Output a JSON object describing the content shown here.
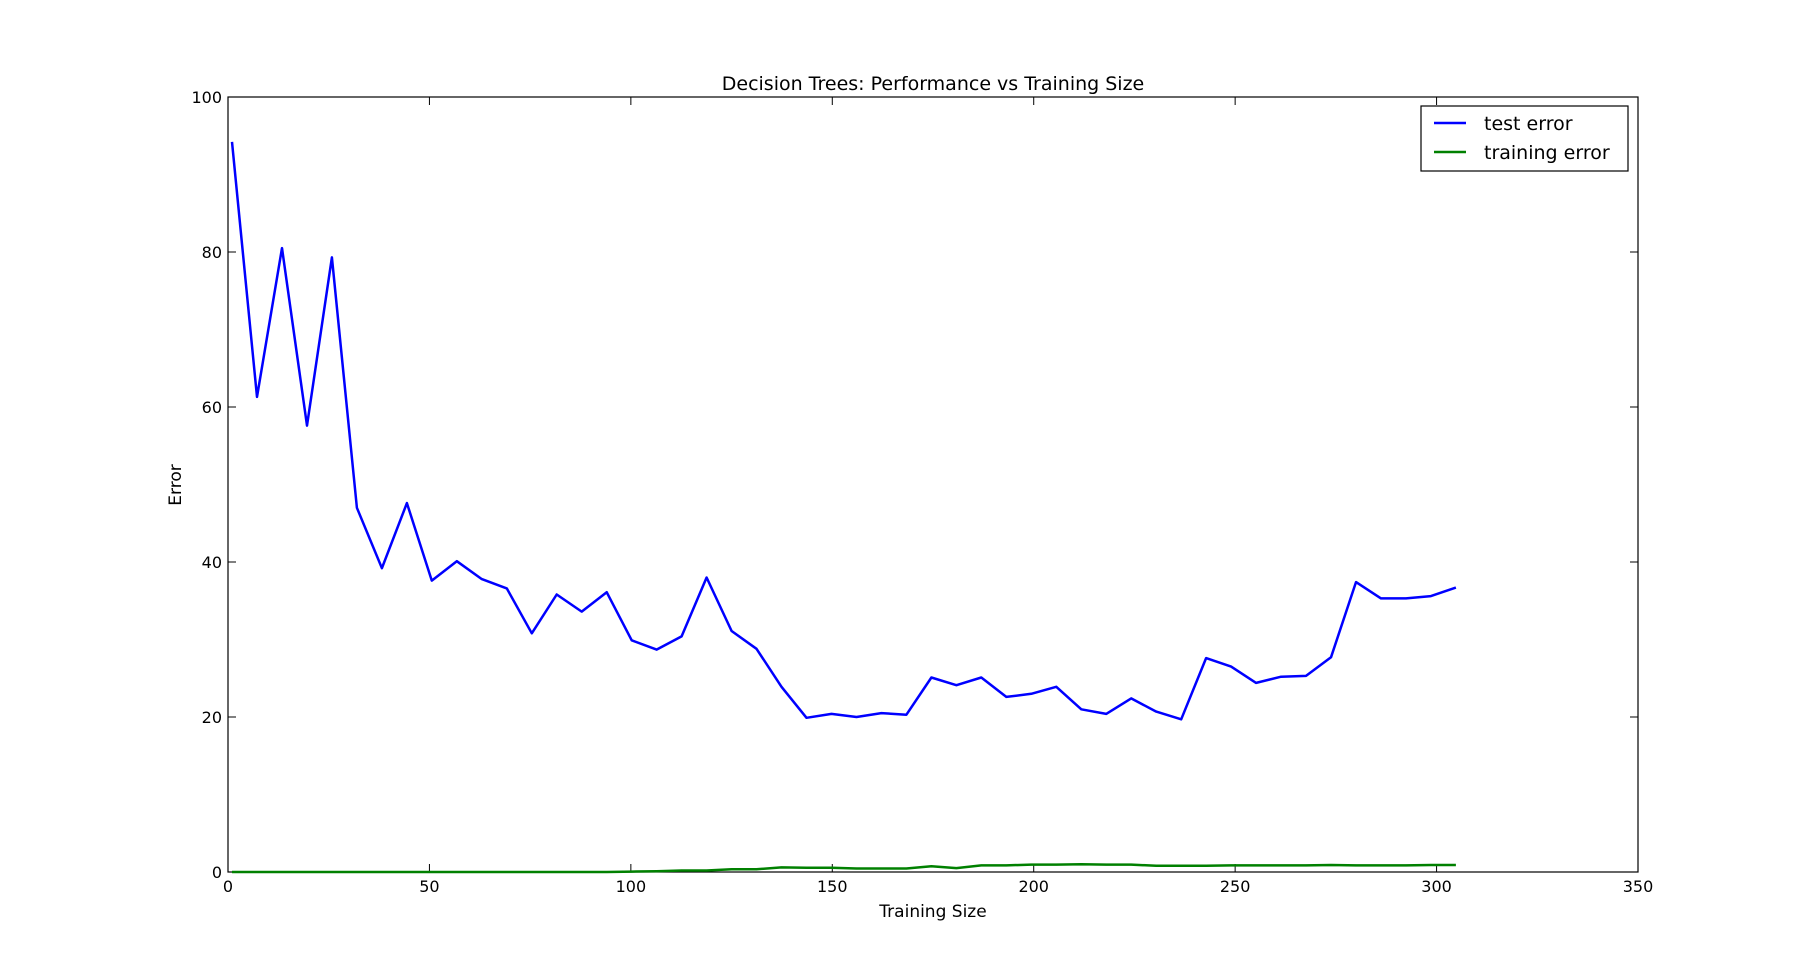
{
  "chart_data": {
    "type": "line",
    "title": "Decision Trees: Performance vs Training Size",
    "xlabel": "Training Size",
    "ylabel": "Error",
    "xlim": [
      0,
      350
    ],
    "ylim": [
      0,
      100
    ],
    "xticks": [
      0,
      50,
      100,
      150,
      200,
      250,
      300,
      350
    ],
    "yticks": [
      0,
      20,
      40,
      60,
      80,
      100
    ],
    "grid": false,
    "legend_position": "top-right",
    "x": [
      1,
      7.2,
      13.4,
      19.6,
      25.8,
      32,
      38.2,
      44.4,
      50.6,
      56.8,
      63,
      69.2,
      75.4,
      81.6,
      87.8,
      94,
      100.2,
      106.4,
      112.6,
      118.8,
      125,
      131.2,
      137.4,
      143.6,
      149.8,
      156,
      162.2,
      168.4,
      174.6,
      180.8,
      187,
      193.2,
      199.4,
      205.6,
      211.8,
      218,
      224.2,
      230.4,
      236.6,
      242.8,
      249,
      255.2,
      261.4,
      267.6,
      273.8,
      280,
      286.2,
      292.4,
      298.6,
      304.8
    ],
    "series": [
      {
        "name": "test error",
        "color": "#0000ff",
        "values": [
          94.2,
          61.3,
          80.5,
          57.6,
          79.3,
          47.0,
          39.2,
          47.6,
          37.6,
          40.1,
          37.8,
          36.6,
          30.8,
          35.8,
          33.6,
          36.1,
          29.9,
          28.7,
          30.4,
          38.0,
          31.1,
          28.8,
          23.9,
          19.9,
          20.4,
          20.0,
          20.5,
          20.3,
          25.1,
          24.1,
          25.1,
          22.6,
          23.0,
          23.9,
          21.0,
          20.4,
          22.4,
          20.7,
          19.7,
          27.6,
          26.5,
          24.4,
          25.2,
          25.3,
          27.7,
          37.4,
          35.3,
          35.3,
          35.6,
          36.7
        ]
      },
      {
        "name": "training error",
        "color": "#008000",
        "values": [
          0.0,
          0.0,
          0.0,
          0.0,
          0.0,
          0.0,
          0.0,
          0.0,
          0.0,
          0.0,
          0.0,
          0.0,
          0.0,
          0.0,
          0.0,
          0.0,
          0.05,
          0.1,
          0.2,
          0.2,
          0.35,
          0.35,
          0.6,
          0.55,
          0.55,
          0.45,
          0.45,
          0.45,
          0.75,
          0.5,
          0.85,
          0.85,
          0.95,
          0.95,
          1.0,
          0.95,
          0.95,
          0.8,
          0.8,
          0.8,
          0.85,
          0.85,
          0.85,
          0.85,
          0.9,
          0.85,
          0.85,
          0.85,
          0.9,
          0.9
        ]
      }
    ]
  }
}
